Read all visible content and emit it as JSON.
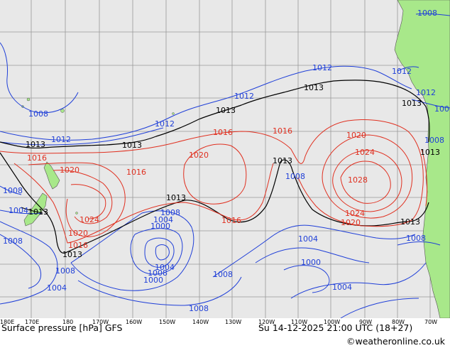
{
  "map": {
    "title": "Surface pressure [hPa] GFS",
    "datetime": "Su 14-12-2025 21:00 UTC (18+27)",
    "credit": "©weatheronline.co.uk",
    "colors": {
      "ocean": "#e8e8e8",
      "land": "#a8e88a",
      "grid": "#999999",
      "isobar_low": "#1f3fd8",
      "isobar_mid": "#000000",
      "isobar_high": "#e03020"
    },
    "lon_ticks": [
      "180E",
      "170E",
      "180",
      "170W",
      "160W",
      "150W",
      "140W",
      "130W",
      "120W",
      "110W",
      "100W",
      "90W",
      "80W",
      "70W"
    ]
  },
  "isobar_labels": {
    "blue": [
      "1008",
      "1012",
      "1012",
      "1008",
      "1012",
      "1012",
      "1012",
      "1008",
      "1008",
      "1004",
      "1008",
      "1004",
      "1008",
      "1004",
      "1004",
      "1000",
      "1000",
      "1008",
      "1004",
      "1008",
      "1008",
      "1008",
      "1004",
      "1000",
      "1008",
      "1012",
      "1008",
      "1004"
    ],
    "black": [
      "1013",
      "1013",
      "1013",
      "1013",
      "1013",
      "1013",
      "1013",
      "1013",
      "1013",
      "1013",
      "1013"
    ],
    "red": [
      "1016",
      "1020",
      "1016",
      "1024",
      "1020",
      "1016",
      "1020",
      "1016",
      "1016",
      "1020",
      "1024",
      "1028",
      "1024",
      "1020",
      "1016"
    ]
  }
}
